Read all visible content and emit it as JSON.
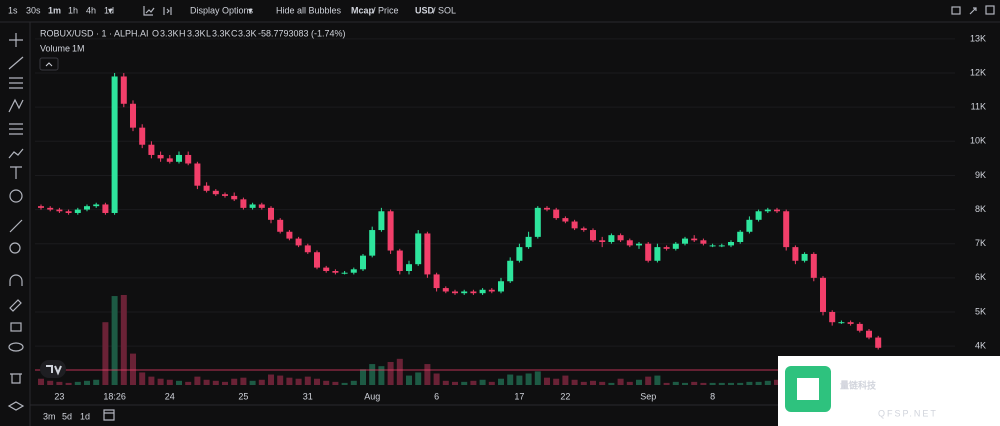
{
  "toolbar": {
    "timeframes": [
      "1s",
      "30s",
      "1m",
      "1h",
      "4h",
      "1d"
    ],
    "display_options": "Display Options",
    "hide_bubbles": "Hide all Bubbles",
    "mcap": "Mcap",
    "price": "/ Price",
    "usd": "USD",
    "sol": "/ SOL"
  },
  "legend": {
    "symbol": "ROBUX/USD · 1 · ALPH.AI",
    "o_label": "O",
    "o": "3.3K",
    "h_label": "H",
    "h": "3.3K",
    "l_label": "L",
    "l": "3.3K",
    "c_label": "C",
    "c": "3.3K",
    "change": "-58.7793083 (-1.74%)",
    "volume_label": "Volume",
    "volume_value": "1M"
  },
  "ranges": [
    "3m",
    "5d",
    "1d"
  ],
  "watermark": {
    "name": "量链科技",
    "site": "QFSP.NET"
  },
  "chart_data": {
    "type": "candlestick",
    "categories": [
      null,
      null,
      "23",
      null,
      null,
      null,
      null,
      null,
      "18:26",
      null,
      null,
      null,
      null,
      null,
      "24",
      null,
      null,
      null,
      null,
      null,
      null,
      null,
      "25",
      null,
      null,
      null,
      null,
      null,
      null,
      "31",
      null,
      null,
      null,
      null,
      null,
      null,
      "Aug",
      null,
      null,
      null,
      null,
      null,
      null,
      "6",
      null,
      null,
      null,
      null,
      null,
      null,
      null,
      null,
      "17",
      null,
      null,
      null,
      null,
      "22",
      null,
      null,
      null,
      null,
      null,
      null,
      null,
      null,
      "Sep",
      null,
      null,
      null,
      null,
      null,
      null,
      "8",
      null,
      null,
      null,
      null,
      null,
      null,
      null,
      null,
      null,
      null,
      null,
      null,
      null,
      null,
      null,
      null,
      null,
      null
    ],
    "open": [
      8100,
      8050,
      8000,
      7950,
      7900,
      8000,
      8100,
      8150,
      7900,
      11900,
      11100,
      10400,
      9900,
      9600,
      9500,
      9400,
      9600,
      9350,
      8700,
      8550,
      8450,
      8400,
      8300,
      8050,
      8150,
      8050,
      7700,
      7350,
      7150,
      6950,
      6750,
      6300,
      6200,
      6150,
      6150,
      6250,
      6650,
      7400,
      7950,
      6800,
      6200,
      6400,
      7300,
      6100,
      5700,
      5600,
      5550,
      5600,
      5550,
      5650,
      5600,
      5900,
      6500,
      6900,
      7200,
      8050,
      8000,
      7750,
      7650,
      7450,
      7400,
      7100,
      7050,
      7250,
      7100,
      6950,
      7000,
      6500,
      6900,
      6850,
      7000,
      7150,
      7100,
      6950,
      6950,
      6950,
      7050,
      7350,
      7700,
      7950,
      8000,
      7950,
      6900,
      6500,
      6700,
      6000,
      5000,
      4700,
      4700,
      4650,
      4450,
      4250
    ],
    "high": [
      8150,
      8100,
      8050,
      8000,
      8050,
      8150,
      8200,
      8200,
      12000,
      12000,
      11200,
      10500,
      10000,
      9700,
      9600,
      9700,
      9700,
      9400,
      8800,
      8600,
      8500,
      8500,
      8350,
      8200,
      8200,
      8100,
      7750,
      7400,
      7200,
      7000,
      6800,
      6350,
      6250,
      6200,
      6300,
      6700,
      7500,
      8050,
      8000,
      6850,
      6500,
      7400,
      7350,
      6150,
      5750,
      5650,
      5650,
      5650,
      5700,
      5700,
      6000,
      6600,
      7000,
      7350,
      8100,
      8100,
      8050,
      7800,
      7700,
      7500,
      7450,
      7200,
      7300,
      7300,
      7150,
      7050,
      7050,
      7000,
      6950,
      7050,
      7200,
      7250,
      7150,
      7000,
      7000,
      7100,
      7400,
      7800,
      8000,
      8050,
      8050,
      8000,
      6950,
      6750,
      6750,
      6050,
      5050,
      4750,
      4750,
      4700,
      4500,
      4300
    ],
    "low": [
      8000,
      7950,
      7900,
      7850,
      7850,
      7950,
      8050,
      7850,
      7850,
      11000,
      10300,
      9800,
      9500,
      9400,
      9350,
      9350,
      9300,
      8600,
      8500,
      8400,
      8350,
      8250,
      8000,
      8000,
      8000,
      7600,
      7300,
      7100,
      6900,
      6700,
      6250,
      6150,
      6100,
      6100,
      6100,
      6200,
      6600,
      7350,
      6700,
      6100,
      6100,
      6350,
      6000,
      5600,
      5550,
      5500,
      5500,
      5500,
      5500,
      5550,
      5550,
      5850,
      6450,
      6850,
      7150,
      7950,
      7700,
      7600,
      7400,
      7350,
      7050,
      6900,
      7000,
      7050,
      6900,
      6850,
      6450,
      6450,
      6800,
      6800,
      6950,
      7050,
      6950,
      6900,
      6900,
      6900,
      7000,
      7300,
      7650,
      7900,
      7900,
      6800,
      6400,
      6450,
      5900,
      4900,
      4600,
      4650,
      4600,
      4400,
      4200,
      3900
    ],
    "close": [
      8050,
      8000,
      7950,
      7900,
      8000,
      8100,
      8150,
      7900,
      11900,
      11100,
      10400,
      9900,
      9600,
      9500,
      9400,
      9600,
      9350,
      8700,
      8550,
      8450,
      8400,
      8300,
      8050,
      8150,
      8050,
      7700,
      7350,
      7150,
      6950,
      6750,
      6300,
      6200,
      6150,
      6150,
      6250,
      6650,
      7400,
      7950,
      6800,
      6200,
      6400,
      7300,
      6100,
      5700,
      5600,
      5550,
      5600,
      5550,
      5650,
      5600,
      5900,
      6500,
      6900,
      7200,
      8050,
      8000,
      7750,
      7650,
      7450,
      7400,
      7100,
      7050,
      7250,
      7100,
      6950,
      7000,
      6500,
      6900,
      6850,
      7000,
      7150,
      7100,
      7000,
      6950,
      6950,
      7050,
      7350,
      7700,
      7950,
      8000,
      7950,
      6900,
      6500,
      6700,
      6000,
      5000,
      4700,
      4700,
      4650,
      4450,
      4250,
      3950
    ],
    "volume": [
      60000,
      40000,
      30000,
      20000,
      30000,
      40000,
      50000,
      600000,
      850000,
      860000,
      300000,
      120000,
      80000,
      60000,
      50000,
      40000,
      30000,
      80000,
      50000,
      40000,
      30000,
      60000,
      70000,
      40000,
      50000,
      100000,
      90000,
      70000,
      60000,
      80000,
      60000,
      40000,
      30000,
      20000,
      40000,
      150000,
      200000,
      180000,
      220000,
      250000,
      90000,
      120000,
      200000,
      110000,
      40000,
      30000,
      30000,
      40000,
      50000,
      30000,
      60000,
      100000,
      90000,
      110000,
      130000,
      70000,
      60000,
      90000,
      50000,
      30000,
      40000,
      30000,
      20000,
      60000,
      30000,
      50000,
      80000,
      90000,
      20000,
      30000,
      20000,
      30000,
      20000,
      20000,
      20000,
      20000,
      20000,
      30000,
      30000,
      40000,
      50000,
      200000,
      120000,
      40000,
      150000,
      250000,
      120000,
      40000,
      60000,
      90000,
      60000,
      70000
    ],
    "up_color": "#2ee59d",
    "down_color": "#f23f6a",
    "volume_up_color": "#1d5a44",
    "volume_down_color": "#6a2236",
    "price_line": 3300,
    "price_line_color": "#f23f6a",
    "ylim": [
      2860,
      13320
    ],
    "yticks": [
      {
        "value": 13000,
        "label": "13K"
      },
      {
        "value": 12000,
        "label": "12K"
      },
      {
        "value": 11000,
        "label": "11K"
      },
      {
        "value": 10000,
        "label": "10K"
      },
      {
        "value": 9000,
        "label": "9K"
      },
      {
        "value": 8000,
        "label": "8K"
      },
      {
        "value": 7000,
        "label": "7K"
      },
      {
        "value": 6000,
        "label": "6K"
      },
      {
        "value": 5000,
        "label": "5K"
      },
      {
        "value": 4000,
        "label": "4K"
      }
    ],
    "grid": true
  }
}
